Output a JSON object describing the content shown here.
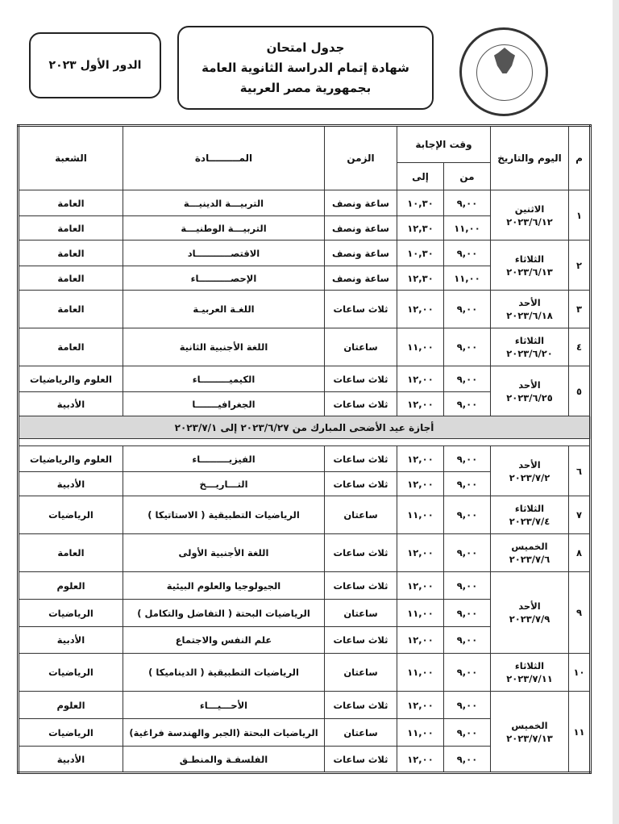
{
  "header": {
    "title_lines": [
      "جدول امتحان",
      "شهادة إتمام الدراسة الثانوية العامة",
      "بجمهورية مصر العربية"
    ],
    "round": "الدور الأول ٢٠٢٣",
    "logo_text": "MINISTRY OF EDUCATION AND TECHNICAL EDUCATION"
  },
  "table": {
    "headers": {
      "num": "م",
      "day_date": "اليوم والتاريخ",
      "answer_time": "وقت الإجابة",
      "from": "من",
      "to": "إلى",
      "duration": "الزمن",
      "subject": "المـــــــــادة",
      "branch": "الشعبة"
    },
    "days": [
      {
        "num": "١",
        "day": "الاثنين",
        "date": "٢٠٢٣/٦/١٢",
        "exams": [
          {
            "from": "٩,٠٠",
            "to": "١٠,٣٠",
            "duration": "ساعة ونصف",
            "subject": "التربيـــة الدينيـــة",
            "branch": "العامة"
          },
          {
            "from": "١١,٠٠",
            "to": "١٢,٣٠",
            "duration": "ساعة ونصف",
            "subject": "التربيـــة الوطنيـــة",
            "branch": "العامة"
          }
        ]
      },
      {
        "num": "٢",
        "day": "الثلاثاء",
        "date": "٢٠٢٣/٦/١٣",
        "exams": [
          {
            "from": "٩,٠٠",
            "to": "١٠,٣٠",
            "duration": "ساعة ونصف",
            "subject": "الاقتصـــــــــــاد",
            "branch": "العامة"
          },
          {
            "from": "١١,٠٠",
            "to": "١٢,٣٠",
            "duration": "ساعة ونصف",
            "subject": "الإحصــــــــــاء",
            "branch": "العامة"
          }
        ]
      },
      {
        "num": "٣",
        "day": "الأحد",
        "date": "٢٠٢٣/٦/١٨",
        "exams": [
          {
            "from": "٩,٠٠",
            "to": "١٢,٠٠",
            "duration": "ثلاث ساعات",
            "subject": "اللغـة العربيـة",
            "branch": "العامة"
          }
        ]
      },
      {
        "num": "٤",
        "day": "الثلاثاء",
        "date": "٢٠٢٣/٦/٢٠",
        "exams": [
          {
            "from": "٩,٠٠",
            "to": "١١,٠٠",
            "duration": "ساعتان",
            "subject": "اللغة الأجنبية الثانية",
            "branch": "العامة"
          }
        ]
      },
      {
        "num": "٥",
        "day": "الأحد",
        "date": "٢٠٢٣/٦/٢٥",
        "exams": [
          {
            "from": "٩,٠٠",
            "to": "١٢,٠٠",
            "duration": "ثلاث ساعات",
            "subject": "الكيميـــــــــاء",
            "branch": "العلوم والرياضيات"
          },
          {
            "from": "٩,٠٠",
            "to": "١٢,٠٠",
            "duration": "ثلاث ساعات",
            "subject": "الجغرافيـــــــا",
            "branch": "الأدبية"
          }
        ]
      },
      {
        "holiday": "أجازة عيد الأضحى المبارك من ٢٠٢٣/٦/٢٧ إلى ٢٠٢٣/٧/١"
      },
      {
        "num": "٦",
        "day": "الأحد",
        "date": "٢٠٢٣/٧/٢",
        "exams": [
          {
            "from": "٩,٠٠",
            "to": "١٢,٠٠",
            "duration": "ثلاث ساعات",
            "subject": "الفيزيـــــــــاء",
            "branch": "العلوم والرياضيات"
          },
          {
            "from": "٩,٠٠",
            "to": "١٢,٠٠",
            "duration": "ثلاث ساعات",
            "subject": "التـــاريـــخ",
            "branch": "الأدبية"
          }
        ]
      },
      {
        "num": "٧",
        "day": "الثلاثاء",
        "date": "٢٠٢٣/٧/٤",
        "exams": [
          {
            "from": "٩,٠٠",
            "to": "١١,٠٠",
            "duration": "ساعتان",
            "subject": "الرياضيات التطبيقية ( الاستاتيكا )",
            "branch": "الرياضيات"
          }
        ]
      },
      {
        "num": "٨",
        "day": "الخميس",
        "date": "٢٠٢٣/٧/٦",
        "exams": [
          {
            "from": "٩,٠٠",
            "to": "١٢,٠٠",
            "duration": "ثلاث ساعات",
            "subject": "اللغة الأجنبية الأولى",
            "branch": "العامة"
          }
        ]
      },
      {
        "num": "٩",
        "day": "الأحد",
        "date": "٢٠٢٣/٧/٩",
        "exams": [
          {
            "from": "٩,٠٠",
            "to": "١٢,٠٠",
            "duration": "ثلاث ساعات",
            "subject": "الجيولوجيا والعلوم البيئية",
            "branch": "العلوم"
          },
          {
            "from": "٩,٠٠",
            "to": "١١,٠٠",
            "duration": "ساعتان",
            "subject": "الرياضيات البحتة ( التفاضل والتكامل )",
            "branch": "الرياضيات"
          },
          {
            "from": "٩,٠٠",
            "to": "١٢,٠٠",
            "duration": "ثلاث ساعات",
            "subject": "علم النفس والاجتماع",
            "branch": "الأدبية"
          }
        ]
      },
      {
        "num": "١٠",
        "day": "الثلاثاء",
        "date": "٢٠٢٣/٧/١١",
        "exams": [
          {
            "from": "٩,٠٠",
            "to": "١١,٠٠",
            "duration": "ساعتان",
            "subject": "الرياضيات التطبيقية ( الديناميكا )",
            "branch": "الرياضيات"
          }
        ]
      },
      {
        "num": "١١",
        "day": "الخميس",
        "date": "٢٠٢٣/٧/١٣",
        "exams": [
          {
            "from": "٩,٠٠",
            "to": "١٢,٠٠",
            "duration": "ثلاث ساعات",
            "subject": "الأحـــيـــاء",
            "branch": "العلوم"
          },
          {
            "from": "٩,٠٠",
            "to": "١١,٠٠",
            "duration": "ساعتان",
            "subject": "الرياضيات البحتة (الجبر والهندسة فراغية)",
            "branch": "الرياضيات"
          },
          {
            "from": "٩,٠٠",
            "to": "١٢,٠٠",
            "duration": "ثلاث ساعات",
            "subject": "الفلسفـة والمنطـق",
            "branch": "الأدبية"
          }
        ]
      }
    ]
  }
}
